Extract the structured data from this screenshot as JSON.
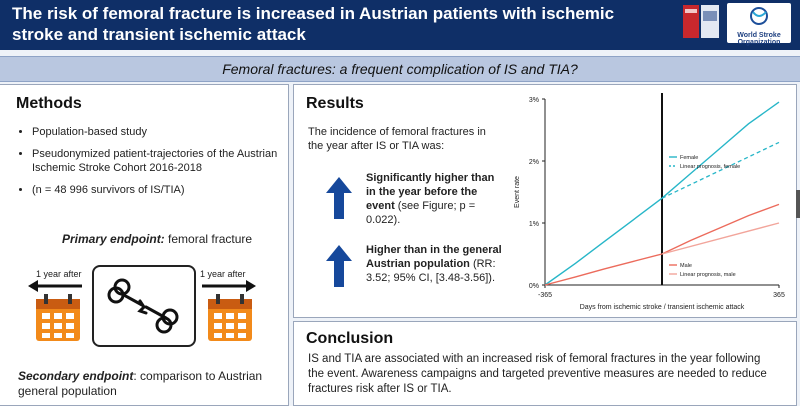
{
  "header": {
    "title": "The risk of femoral fracture is increased in Austrian patients with ischemic stroke and transient ischemic attack",
    "logo_text": "World Stroke Organization",
    "colors": {
      "bg": "#0f2f67",
      "text": "#ffffff"
    }
  },
  "subtitle": "Femoral fractures: a frequent complication of IS and TIA?",
  "methods": {
    "title": "Methods",
    "bullets": [
      "Population-based study",
      "Pseudonymized patient-trajectories of the Austrian Ischemic Stroke Cohort 2016-2018",
      "(n = 48 996 survivors of IS/TIA)"
    ],
    "primary_label": "Primary endpoint:",
    "primary_value": " femoral fracture",
    "left_caption": "1 year after",
    "right_caption": "1 year after",
    "secondary_label": "Secondary endpoint",
    "secondary_value": ": comparison to Austrian general population"
  },
  "results": {
    "title": "Results",
    "intro": "The incidence of femoral fractures in the year after IS or TIA was:",
    "finding1_bold": "Significantly higher than in the year before the event",
    "finding1_rest": " (see Figure; p = 0.022).",
    "finding2_bold": "Higher than in the general Austrian population",
    "finding2_rest": " (RR: 3.52; 95% CI, [3.48-3.56]).",
    "arrow_color": "#16489b"
  },
  "conclusion": {
    "title": "Conclusion",
    "text": "IS and TIA are associated with an increased risk of femoral fractures in the year following the event. Awareness campaigns and targeted preventive measures are needed to reduce fractures risk after IS or TIA."
  },
  "chart_data": {
    "type": "line",
    "xlabel": "Days from ischemic stroke / transient ischemic attack",
    "ylabel": "Event rate",
    "xlim": [
      -365,
      365
    ],
    "ylim": [
      0,
      3
    ],
    "x_ticks": [
      "-365",
      "365"
    ],
    "y_ticks": [
      "0%",
      "1%",
      "2%",
      "3%"
    ],
    "event_line_x": 0,
    "legend_top": [
      "Female",
      "Linear prognosis, female"
    ],
    "legend_bottom": [
      "Male",
      "Linear prognosis, male"
    ],
    "series": [
      {
        "name": "Female",
        "color": "#27b6c8",
        "style": "solid",
        "x": [
          -365,
          -270,
          -180,
          -90,
          0,
          90,
          180,
          270,
          365
        ],
        "y": [
          0.0,
          0.35,
          0.7,
          1.05,
          1.4,
          1.8,
          2.2,
          2.6,
          2.95
        ]
      },
      {
        "name": "Linear prognosis, female",
        "color": "#27b6c8",
        "style": "dashed",
        "x": [
          0,
          365
        ],
        "y": [
          1.4,
          2.3
        ]
      },
      {
        "name": "Male",
        "color": "#ec6b5c",
        "style": "solid",
        "x": [
          -365,
          -270,
          -180,
          -90,
          0,
          90,
          180,
          270,
          365
        ],
        "y": [
          0.0,
          0.13,
          0.26,
          0.38,
          0.5,
          0.72,
          0.92,
          1.12,
          1.3
        ]
      },
      {
        "name": "Linear prognosis, male",
        "color": "#f2a59b",
        "style": "solid",
        "x": [
          0,
          365
        ],
        "y": [
          0.5,
          1.0
        ]
      }
    ]
  }
}
